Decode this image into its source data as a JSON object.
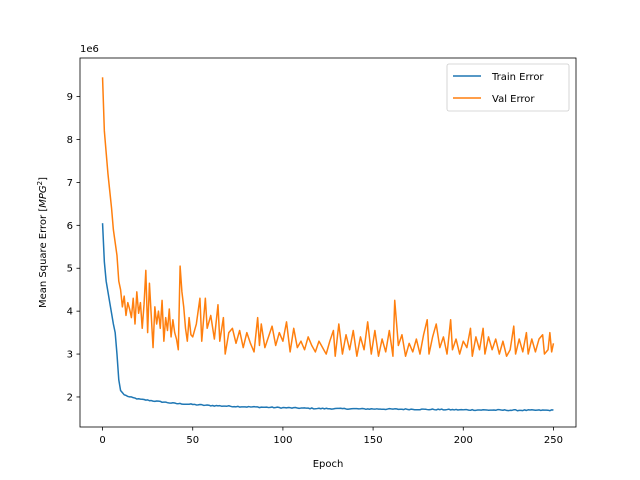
{
  "chart_data": {
    "type": "line",
    "xlabel": "Epoch",
    "ylabel": "Mean Square Error [$MPG^2$]",
    "ylabel_parts": {
      "prefix": "Mean Square Error [",
      "var": "MPG",
      "exp": "2",
      "suffix": "]"
    },
    "y_offset_text": "1e6",
    "xlim": [
      -12.5,
      262.5
    ],
    "ylim": [
      1.3,
      9.9
    ],
    "x_ticks": [
      0,
      50,
      100,
      150,
      200,
      250
    ],
    "x_tick_labels": [
      "0",
      "50",
      "100",
      "150",
      "200",
      "250"
    ],
    "y_ticks": [
      2,
      3,
      4,
      5,
      6,
      7,
      8,
      9
    ],
    "y_tick_labels": [
      "2",
      "3",
      "4",
      "5",
      "6",
      "7",
      "8",
      "9"
    ],
    "grid": false,
    "legend_position": "top-right",
    "series": [
      {
        "name": "Train Error",
        "color": "#1f77b4",
        "keypoints": [
          [
            0,
            6.05
          ],
          [
            1,
            5.15
          ],
          [
            2,
            4.7
          ],
          [
            4,
            4.2
          ],
          [
            6,
            3.7
          ],
          [
            7,
            3.5
          ],
          [
            8,
            3.0
          ],
          [
            9,
            2.4
          ],
          [
            10,
            2.15
          ],
          [
            12,
            2.05
          ],
          [
            15,
            2.0
          ],
          [
            20,
            1.95
          ],
          [
            30,
            1.9
          ],
          [
            40,
            1.85
          ],
          [
            60,
            1.8
          ],
          [
            80,
            1.77
          ],
          [
            100,
            1.75
          ],
          [
            120,
            1.73
          ],
          [
            150,
            1.72
          ],
          [
            180,
            1.71
          ],
          [
            200,
            1.7
          ],
          [
            230,
            1.69
          ],
          [
            250,
            1.69
          ]
        ],
        "noise": 0.012
      },
      {
        "name": "Val Error",
        "color": "#ff7f0e",
        "keypoints": [
          [
            0,
            9.45
          ],
          [
            1,
            8.2
          ],
          [
            2,
            7.7
          ],
          [
            3,
            7.2
          ],
          [
            4,
            6.8
          ],
          [
            5,
            6.4
          ],
          [
            6,
            5.9
          ],
          [
            7,
            5.6
          ],
          [
            8,
            5.3
          ],
          [
            9,
            4.7
          ],
          [
            10,
            4.5
          ],
          [
            11,
            4.1
          ],
          [
            12,
            4.35
          ],
          [
            13,
            3.9
          ],
          [
            14,
            4.2
          ],
          [
            15,
            4.05
          ],
          [
            16,
            3.85
          ],
          [
            17,
            4.3
          ],
          [
            18,
            3.7
          ],
          [
            19,
            4.45
          ],
          [
            20,
            3.95
          ],
          [
            21,
            4.2
          ],
          [
            22,
            3.6
          ],
          [
            23,
            4.15
          ],
          [
            24,
            4.95
          ],
          [
            25,
            3.5
          ],
          [
            26,
            4.65
          ],
          [
            27,
            3.9
          ],
          [
            28,
            3.15
          ],
          [
            29,
            4.1
          ],
          [
            30,
            3.7
          ],
          [
            31,
            4.0
          ],
          [
            32,
            3.6
          ],
          [
            33,
            4.25
          ],
          [
            34,
            3.3
          ],
          [
            35,
            3.85
          ],
          [
            36,
            3.55
          ],
          [
            37,
            4.05
          ],
          [
            38,
            3.4
          ],
          [
            39,
            3.8
          ],
          [
            40,
            3.5
          ],
          [
            41,
            3.35
          ],
          [
            42,
            3.1
          ],
          [
            43,
            5.05
          ],
          [
            44,
            4.45
          ],
          [
            45,
            4.1
          ],
          [
            46,
            3.6
          ],
          [
            47,
            3.3
          ],
          [
            48,
            3.85
          ],
          [
            49,
            3.45
          ],
          [
            50,
            3.4
          ],
          [
            52,
            3.7
          ],
          [
            54,
            4.3
          ],
          [
            55,
            3.3
          ],
          [
            57,
            4.3
          ],
          [
            58,
            3.6
          ],
          [
            60,
            3.9
          ],
          [
            62,
            3.35
          ],
          [
            64,
            4.15
          ],
          [
            65,
            3.3
          ],
          [
            67,
            3.85
          ],
          [
            68,
            3.0
          ],
          [
            70,
            3.5
          ],
          [
            72,
            3.6
          ],
          [
            74,
            3.25
          ],
          [
            76,
            3.55
          ],
          [
            78,
            3.15
          ],
          [
            80,
            3.5
          ],
          [
            82,
            3.25
          ],
          [
            84,
            3.05
          ],
          [
            86,
            3.85
          ],
          [
            87,
            3.2
          ],
          [
            88,
            3.7
          ],
          [
            90,
            3.15
          ],
          [
            92,
            3.4
          ],
          [
            94,
            3.65
          ],
          [
            96,
            3.2
          ],
          [
            98,
            3.5
          ],
          [
            100,
            3.3
          ],
          [
            102,
            3.75
          ],
          [
            104,
            3.05
          ],
          [
            106,
            3.6
          ],
          [
            108,
            3.15
          ],
          [
            110,
            3.3
          ],
          [
            112,
            3.1
          ],
          [
            114,
            3.4
          ],
          [
            116,
            3.2
          ],
          [
            118,
            3.05
          ],
          [
            120,
            3.3
          ],
          [
            122,
            3.15
          ],
          [
            124,
            3.0
          ],
          [
            126,
            3.3
          ],
          [
            128,
            3.55
          ],
          [
            129,
            2.95
          ],
          [
            131,
            3.7
          ],
          [
            133,
            3.0
          ],
          [
            135,
            3.45
          ],
          [
            137,
            3.1
          ],
          [
            139,
            3.55
          ],
          [
            141,
            2.95
          ],
          [
            143,
            3.4
          ],
          [
            145,
            3.1
          ],
          [
            147,
            3.75
          ],
          [
            149,
            3.0
          ],
          [
            151,
            3.55
          ],
          [
            153,
            2.95
          ],
          [
            155,
            3.35
          ],
          [
            157,
            3.05
          ],
          [
            159,
            3.55
          ],
          [
            161,
            2.95
          ],
          [
            162,
            4.25
          ],
          [
            164,
            3.2
          ],
          [
            166,
            3.45
          ],
          [
            168,
            2.95
          ],
          [
            170,
            3.25
          ],
          [
            172,
            3.05
          ],
          [
            174,
            3.35
          ],
          [
            176,
            3.0
          ],
          [
            178,
            3.45
          ],
          [
            180,
            3.8
          ],
          [
            181,
            3.0
          ],
          [
            183,
            3.4
          ],
          [
            185,
            3.7
          ],
          [
            187,
            3.15
          ],
          [
            189,
            3.4
          ],
          [
            191,
            3.0
          ],
          [
            193,
            3.8
          ],
          [
            194,
            3.1
          ],
          [
            196,
            3.35
          ],
          [
            198,
            3.0
          ],
          [
            200,
            3.3
          ],
          [
            202,
            3.15
          ],
          [
            204,
            3.6
          ],
          [
            205,
            2.95
          ],
          [
            207,
            3.4
          ],
          [
            209,
            3.1
          ],
          [
            211,
            3.6
          ],
          [
            212,
            3.0
          ],
          [
            214,
            3.4
          ],
          [
            216,
            3.1
          ],
          [
            218,
            3.35
          ],
          [
            220,
            3.0
          ],
          [
            222,
            3.3
          ],
          [
            224,
            2.95
          ],
          [
            226,
            3.1
          ],
          [
            228,
            3.65
          ],
          [
            229,
            3.0
          ],
          [
            231,
            3.35
          ],
          [
            233,
            3.05
          ],
          [
            235,
            3.5
          ],
          [
            236,
            3.0
          ],
          [
            238,
            3.35
          ],
          [
            240,
            3.05
          ],
          [
            242,
            3.35
          ],
          [
            244,
            3.45
          ],
          [
            245,
            3.0
          ],
          [
            247,
            3.1
          ],
          [
            248,
            3.5
          ],
          [
            249,
            3.05
          ],
          [
            250,
            3.25
          ]
        ]
      }
    ]
  }
}
